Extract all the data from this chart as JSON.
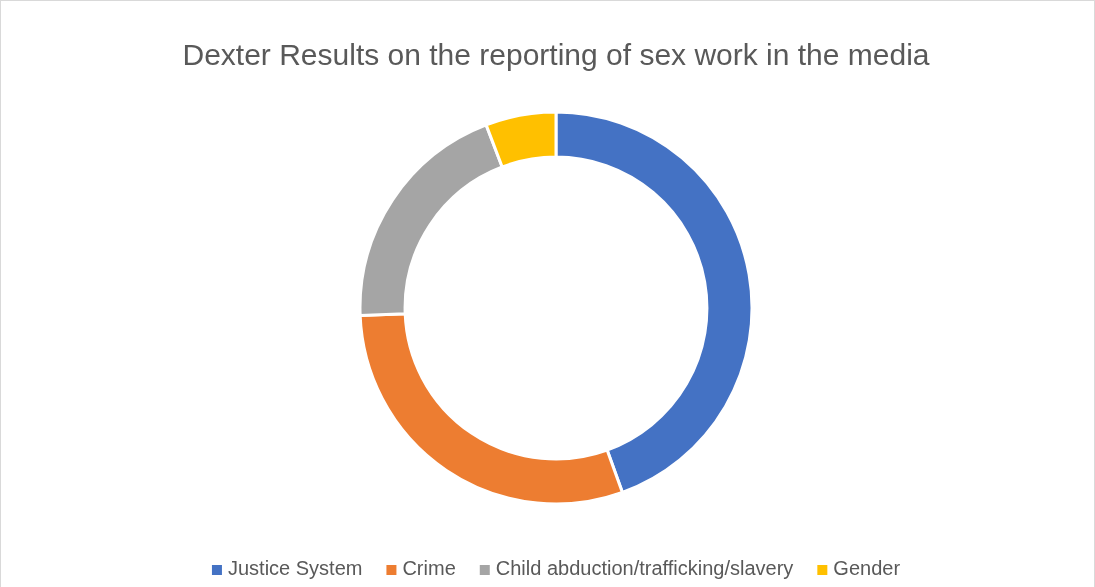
{
  "chart_data": {
    "type": "donut",
    "title": "Dexter Results on the reporting of sex work in the media",
    "categories": [
      "Justice System",
      "Crime",
      "Child abduction/trafficking/slavery",
      "Gender"
    ],
    "values": [
      44.5,
      29.9,
      19.8,
      5.8
    ],
    "colors": [
      "#4472c4",
      "#ed7d31",
      "#a5a5a5",
      "#ffc000"
    ],
    "legend": "bottom"
  }
}
